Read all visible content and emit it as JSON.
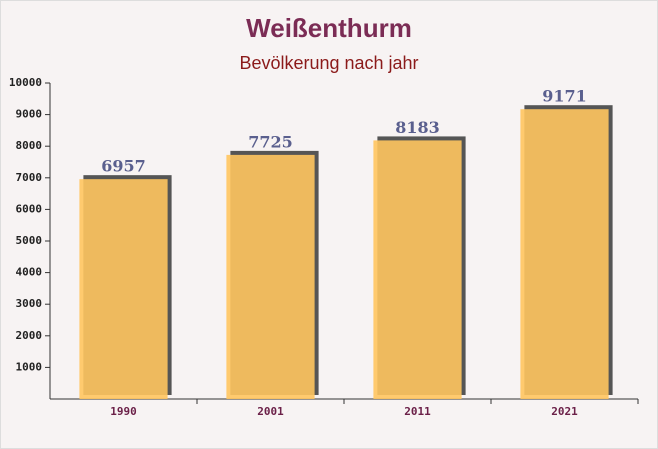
{
  "chart_data": {
    "type": "bar",
    "title": "Weißenthurm",
    "subtitle": "Bevölkerung nach jahr",
    "categories": [
      "1990",
      "2001",
      "2011",
      "2021"
    ],
    "values": [
      6957,
      7725,
      8183,
      9171
    ],
    "color": "#ffc55f",
    "ylim": [
      0,
      10000
    ],
    "yticks": [
      1000,
      2000,
      3000,
      4000,
      5000,
      6000,
      7000,
      8000,
      9000,
      10000
    ],
    "grid": false
  }
}
